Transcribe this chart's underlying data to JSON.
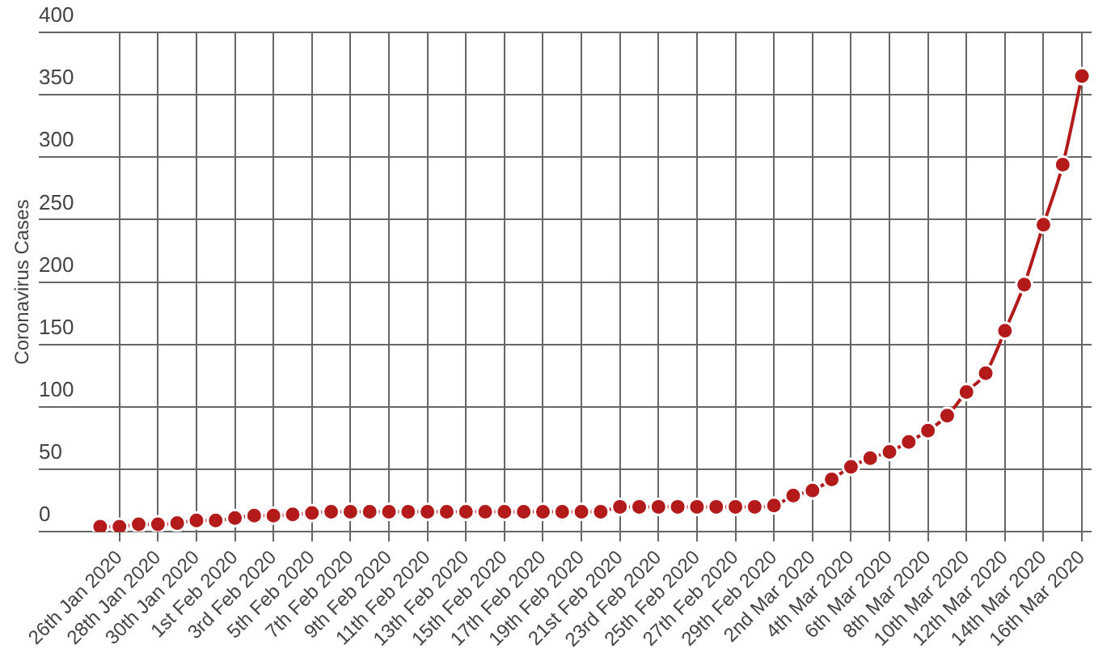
{
  "chart_data": {
    "type": "line",
    "ylabel": "Coronavirus Cases",
    "categories": [
      null,
      "26th Jan 2020",
      null,
      "28th Jan 2020",
      null,
      "30th Jan 2020",
      null,
      "1st Feb 2020",
      null,
      "3rd Feb 2020",
      null,
      "5th Feb 2020",
      null,
      "7th Feb 2020",
      null,
      "9th Feb 2020",
      null,
      "11th Feb 2020",
      null,
      "13th Feb 2020",
      null,
      "15th Feb 2020",
      null,
      "17th Feb 2020",
      null,
      "19th Feb 2020",
      null,
      "21st Feb 2020",
      null,
      "23rd Feb 2020",
      null,
      "25th Feb 2020",
      null,
      "27th Feb 2020",
      null,
      "29th Feb 2020",
      null,
      "2nd Mar 2020",
      null,
      "4th Mar 2020",
      null,
      "6th Mar 2020",
      null,
      "8th Mar 2020",
      null,
      "10th Mar 2020",
      null,
      "12th Mar 2020",
      null,
      "14th Mar 2020",
      null,
      "16th Mar 2020"
    ],
    "series": [
      {
        "color": "#b31b1b",
        "values": [
          4,
          4,
          6,
          6,
          7,
          9,
          9,
          11,
          13,
          13,
          14,
          15,
          16,
          16,
          16,
          16,
          16,
          16,
          16,
          16,
          16,
          16,
          16,
          16,
          16,
          16,
          16,
          20,
          20,
          20,
          20,
          20,
          20,
          20,
          20,
          21,
          29,
          33,
          42,
          52,
          59,
          64,
          72,
          81,
          93,
          112,
          127,
          161,
          198,
          246,
          294,
          365
        ]
      }
    ],
    "ylim": [
      0,
      400
    ],
    "yticks": [
      0,
      50,
      100,
      150,
      200,
      250,
      300,
      350,
      400
    ],
    "grid": true,
    "legend": false,
    "marker": "circle",
    "line_style": "solid"
  }
}
